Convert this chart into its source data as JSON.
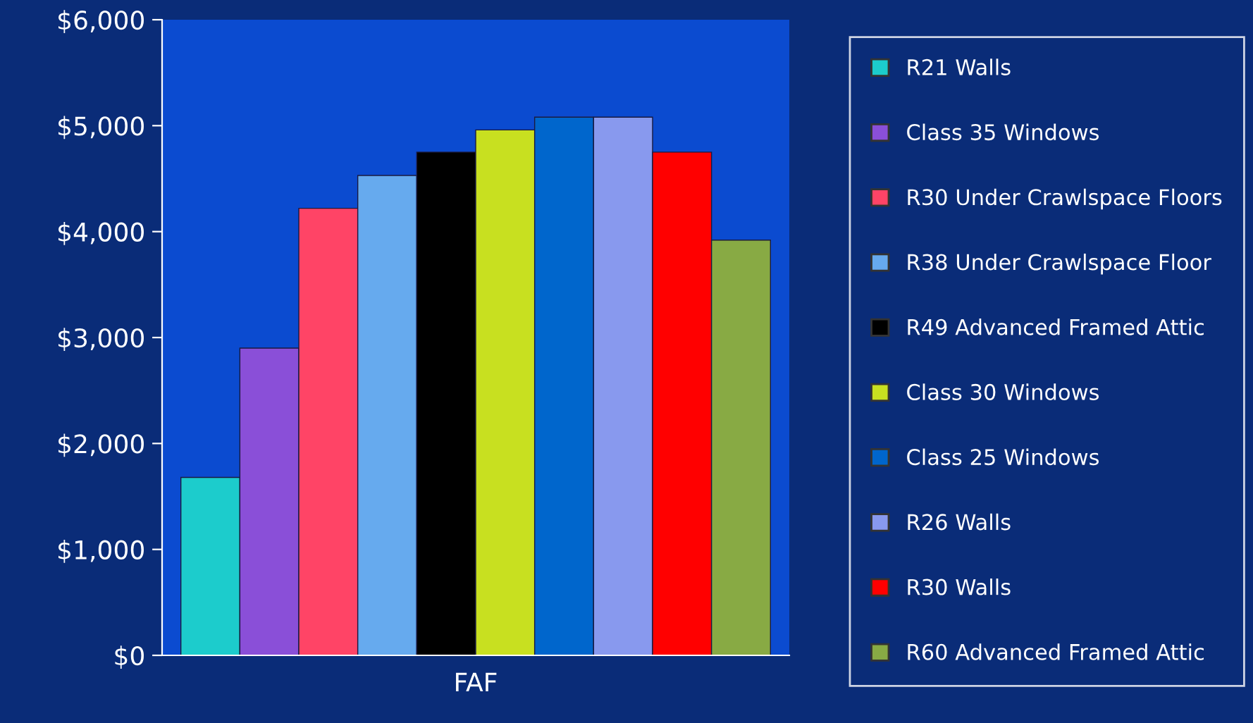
{
  "chart_data": {
    "type": "bar",
    "categories": [
      "FAF"
    ],
    "series": [
      {
        "name": "R21 Walls",
        "color": "#1ccccc",
        "values": [
          1680
        ]
      },
      {
        "name": "Class 35 Windows",
        "color": "#8a4fd8",
        "values": [
          2900
        ]
      },
      {
        "name": "R30 Under Crawlspace Floors",
        "color": "#ff4466",
        "values": [
          4220
        ]
      },
      {
        "name": "R38 Under Crawlspace Floor",
        "color": "#66aaee",
        "values": [
          4530
        ]
      },
      {
        "name": "R49 Advanced Framed Attic",
        "color": "#000000",
        "values": [
          4750
        ]
      },
      {
        "name": "Class 30 Windows",
        "color": "#c8e020",
        "values": [
          4960
        ]
      },
      {
        "name": "Class 25 Windows",
        "color": "#0066cc",
        "values": [
          5080
        ]
      },
      {
        "name": "R26 Walls",
        "color": "#8899ee",
        "values": [
          5080
        ]
      },
      {
        "name": "R30 Walls",
        "color": "#ff0000",
        "values": [
          4750
        ]
      },
      {
        "name": "R60 Advanced Framed Attic",
        "color": "#88aa44",
        "values": [
          3920
        ]
      }
    ],
    "ylim": [
      0,
      6000
    ],
    "yticks": [
      {
        "value": 0,
        "label": "$0"
      },
      {
        "value": 1000,
        "label": "$1,000"
      },
      {
        "value": 2000,
        "label": "$2,000"
      },
      {
        "value": 3000,
        "label": "$3,000"
      },
      {
        "value": 4000,
        "label": "$4,000"
      },
      {
        "value": 5000,
        "label": "$5,000"
      },
      {
        "value": 6000,
        "label": "$6,000"
      }
    ],
    "grid": false,
    "legend": "right"
  }
}
